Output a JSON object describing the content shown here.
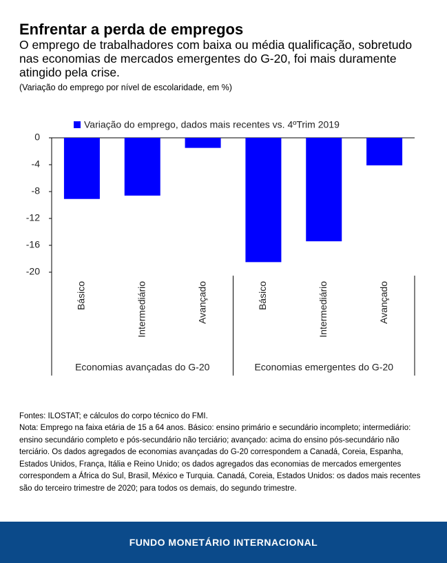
{
  "header": {
    "title": "Enfrentar a perda de empregos",
    "subtitle": "O emprego de trabalhadores com baixa ou média qualificação, sobretudo nas economias de mercados emergentes do G-20, foi mais duramente atingido pela crise.",
    "units": "(Variação do emprego por nível de escolaridade, em %)"
  },
  "chart_data": {
    "type": "bar",
    "categories": [
      "Básico",
      "Intermediário",
      "Avançado",
      "Básico",
      "Intermediário",
      "Avançado"
    ],
    "groups": [
      "Economias avançadas do G-20",
      "Economias emergentes do G-20"
    ],
    "series": [
      {
        "name": "Variação do emprego, dados mais recentes vs. 4ºTrim 2019",
        "color": "#0000ff",
        "values": [
          -9.1,
          -8.6,
          -1.5,
          -18.5,
          -15.4,
          -4.1
        ]
      }
    ],
    "ylim": [
      -20,
      0
    ],
    "yticks": [
      0,
      -4,
      -8,
      -12,
      -16,
      -20
    ]
  },
  "notes": {
    "sources": "Fontes: ILOSTAT; e cálculos do corpo técnico do FMI.",
    "note": "Nota: Emprego na faixa etária de 15 a 64 anos. Básico: ensino primário e secundário incompleto; intermediário: ensino secundário completo e pós-secundário não terciário; avançado: acima do ensino pós-secundário não terciário. Os dados agregados de economias avançadas do G-20 correspondem a Canadá, Coreia, Espanha, Estados Unidos, França, Itália e Reino Unido; os dados agregados das economias de mercados emergentes correspondem a África do Sul, Brasil, México e Turquia. Canadá, Coreia, Estados Unidos: os dados mais recentes são do terceiro trimestre de 2020; para todos os demais, do segundo trimestre."
  },
  "footer": "FUNDO MONETÁRIO INTERNACIONAL"
}
